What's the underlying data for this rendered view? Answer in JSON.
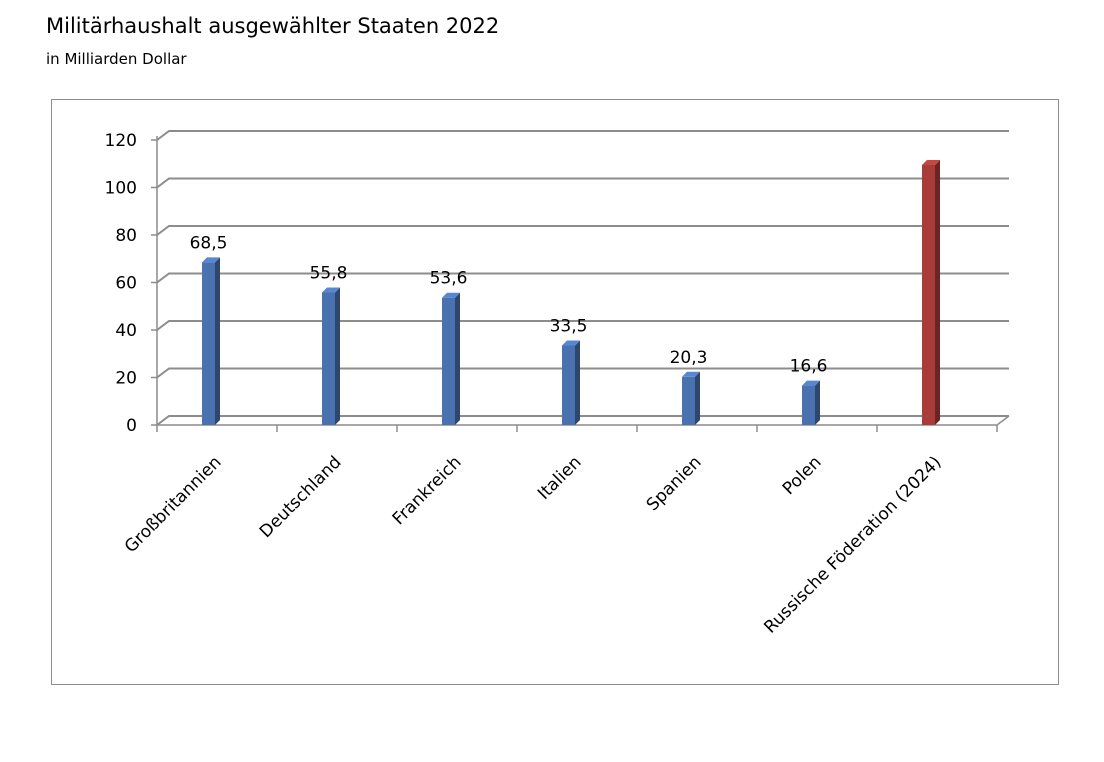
{
  "title": "Militärhaushalt ausgewählter Staaten 2022",
  "subtitle": "in Milliarden Dollar",
  "chart_data": {
    "type": "bar",
    "title": "Militärhaushalt ausgewählter Staaten 2022",
    "subtitle": "in Milliarden Dollar",
    "categories": [
      "Großbritannien",
      "Deutschland",
      "Frankreich",
      "Italien",
      "Spanien",
      "Polen",
      "Russische Föderation (2024)"
    ],
    "values": [
      68.5,
      55.8,
      53.6,
      33.5,
      20.3,
      16.6,
      109.5
    ],
    "data_labels": [
      "68,5",
      "55,8",
      "53,6",
      "33,5",
      "20,3",
      "16,6",
      ""
    ],
    "y_ticks": [
      "0",
      "20",
      "40",
      "60",
      "80",
      "100",
      "120"
    ],
    "ylim": [
      0,
      120
    ],
    "xlabel": "",
    "ylabel": "",
    "grid": true,
    "legend": "none",
    "bar_colors": [
      "#4a72b0",
      "#4a72b0",
      "#4a72b0",
      "#4a72b0",
      "#4a72b0",
      "#4a72b0",
      "#a83c38"
    ],
    "colors": {
      "bar_primary": "#4a72b0",
      "bar_highlight": "#a83c38",
      "gridline": "#8c8c8c",
      "axis": "#8c8c8c"
    }
  }
}
